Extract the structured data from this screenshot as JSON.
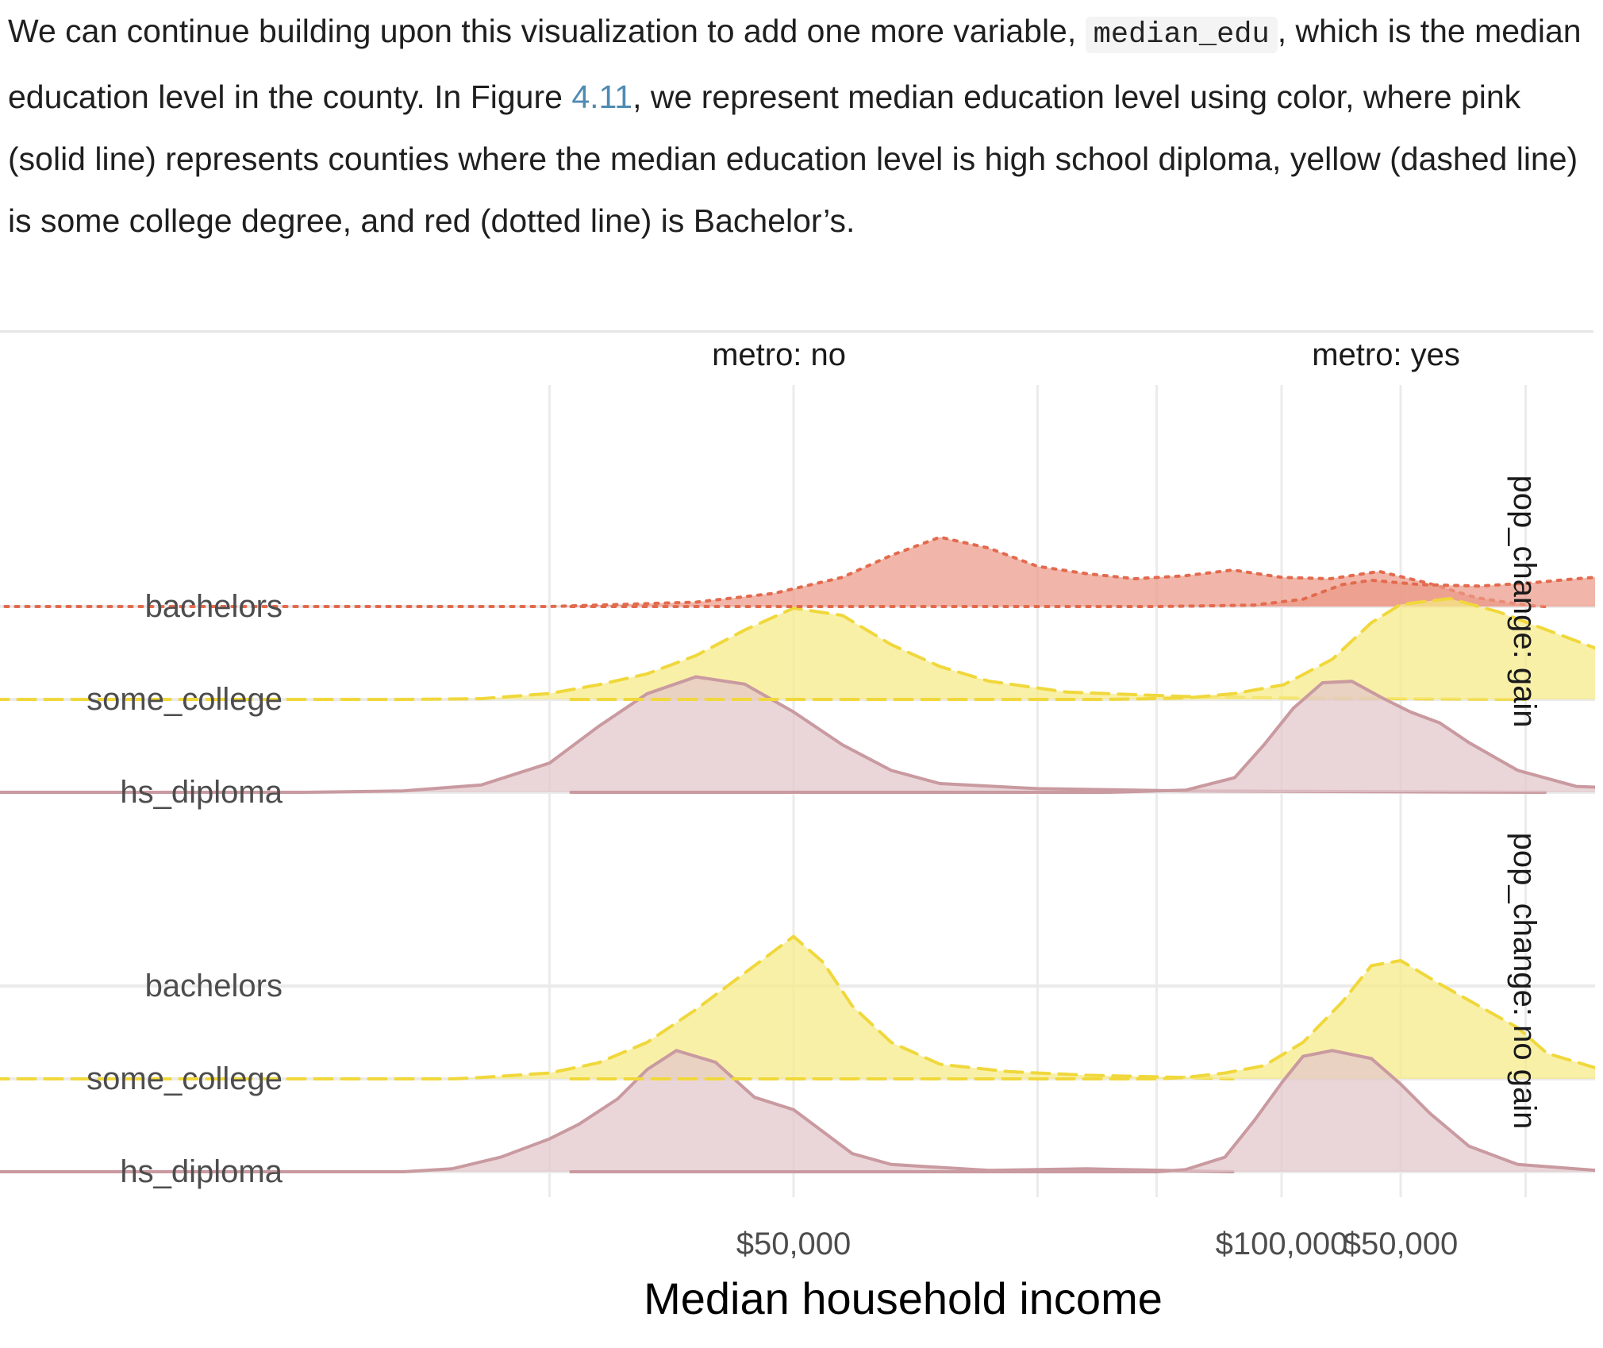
{
  "intro": {
    "part1": "We can continue building upon this visualization to add one more variable,",
    "code": "median_edu",
    "part2": ", which is the median education level in the county. In Figure",
    "fig_ref": "4.11",
    "part3": ", we represent median education level using color, where pink (solid line) represents counties where the median education level is high school diploma, yellow (dashed line) is some college degree, and red (dotted line) is Bachelor’s."
  },
  "chart_data": {
    "type": "ridgeline-density",
    "xlabel": "Median household income",
    "x_ticks": [
      50000,
      100000,
      150000
    ],
    "x_tick_labels": [
      "$50,000",
      "$100,000",
      "$150,000"
    ],
    "xlim": [
      0,
      152000
    ],
    "y_categories": [
      "hs_diploma",
      "some_college",
      "bachelors"
    ],
    "col_facets": [
      "metro: no",
      "metro: yes"
    ],
    "row_facets": [
      "pop_change: gain",
      "pop_change: no gain"
    ],
    "colors": {
      "hs_diploma": "#c99aa0",
      "some_college": "#f0d83c",
      "bachelors": "#e36a4e"
    },
    "fill_colors": {
      "hs_diploma": "#e2c6cb",
      "some_college": "#f7ea86",
      "bachelors": "#ec9a88"
    },
    "line_styles": {
      "hs_diploma": "solid",
      "some_college": "dashed",
      "bachelors": "dotted"
    },
    "panels": [
      {
        "col": 0,
        "row": 0,
        "series": [
          {
            "category": "bachelors",
            "points": [
              [
                -35000,
                0
              ],
              [
                25000,
                0
              ],
              [
                30000,
                0.02
              ],
              [
                40000,
                0.06
              ],
              [
                48000,
                0.18
              ],
              [
                55000,
                0.4
              ],
              [
                60000,
                0.7
              ],
              [
                65000,
                0.95
              ],
              [
                70000,
                0.8
              ],
              [
                75000,
                0.55
              ],
              [
                80000,
                0.45
              ],
              [
                85000,
                0.38
              ],
              [
                90000,
                0.42
              ],
              [
                95000,
                0.5
              ],
              [
                100000,
                0.4
              ],
              [
                105000,
                0.38
              ],
              [
                110000,
                0.48
              ],
              [
                115000,
                0.32
              ],
              [
                120000,
                0.12
              ],
              [
                125000,
                0.02
              ],
              [
                127000,
                0
              ]
            ]
          },
          {
            "category": "some_college",
            "points": [
              [
                -35000,
                0
              ],
              [
                10000,
                0
              ],
              [
                18000,
                0.01
              ],
              [
                25000,
                0.08
              ],
              [
                30000,
                0.2
              ],
              [
                35000,
                0.35
              ],
              [
                40000,
                0.6
              ],
              [
                45000,
                0.95
              ],
              [
                50000,
                1.25
              ],
              [
                55000,
                1.15
              ],
              [
                60000,
                0.75
              ],
              [
                65000,
                0.45
              ],
              [
                70000,
                0.25
              ],
              [
                78000,
                0.1
              ],
              [
                90000,
                0.04
              ],
              [
                100000,
                0.02
              ],
              [
                125000,
                0
              ]
            ]
          },
          {
            "category": "hs_diploma",
            "points": [
              [
                -35000,
                0
              ],
              [
                0,
                0
              ],
              [
                10000,
                0.02
              ],
              [
                18000,
                0.1
              ],
              [
                25000,
                0.4
              ],
              [
                30000,
                0.9
              ],
              [
                35000,
                1.35
              ],
              [
                40000,
                1.58
              ],
              [
                45000,
                1.48
              ],
              [
                50000,
                1.1
              ],
              [
                55000,
                0.65
              ],
              [
                60000,
                0.3
              ],
              [
                65000,
                0.12
              ],
              [
                75000,
                0.05
              ],
              [
                90000,
                0.02
              ],
              [
                127000,
                0
              ]
            ]
          }
        ]
      },
      {
        "col": 1,
        "row": 0,
        "series": [
          {
            "category": "bachelors",
            "points": [
              [
                -35000,
                0
              ],
              [
                25000,
                0
              ],
              [
                35000,
                0.02
              ],
              [
                40000,
                0.1
              ],
              [
                44000,
                0.3
              ],
              [
                47000,
                0.36
              ],
              [
                52000,
                0.3
              ],
              [
                58000,
                0.28
              ],
              [
                63000,
                0.32
              ],
              [
                68000,
                0.38
              ],
              [
                75000,
                0.45
              ],
              [
                82000,
                0.5
              ],
              [
                90000,
                0.6
              ],
              [
                95000,
                0.65
              ],
              [
                102000,
                0.64
              ],
              [
                108000,
                0.58
              ],
              [
                113000,
                0.42
              ],
              [
                117000,
                0.18
              ],
              [
                122000,
                0.1
              ],
              [
                128000,
                0.06
              ],
              [
                135000,
                0.03
              ],
              [
                138000,
                0.03
              ],
              [
                142000,
                0
              ]
            ]
          },
          {
            "category": "some_college",
            "points": [
              [
                -35000,
                0
              ],
              [
                20000,
                0
              ],
              [
                28000,
                0.02
              ],
              [
                33000,
                0.08
              ],
              [
                38000,
                0.2
              ],
              [
                43000,
                0.55
              ],
              [
                47000,
                1.05
              ],
              [
                50000,
                1.3
              ],
              [
                55000,
                1.38
              ],
              [
                60000,
                1.2
              ],
              [
                65000,
                0.95
              ],
              [
                70000,
                0.7
              ],
              [
                77000,
                0.52
              ],
              [
                85000,
                0.3
              ],
              [
                95000,
                0.12
              ],
              [
                110000,
                0.03
              ],
              [
                125000,
                0.01
              ],
              [
                142000,
                0
              ]
            ]
          },
          {
            "category": "hs_diploma",
            "points": [
              [
                -35000,
                0
              ],
              [
                20000,
                0
              ],
              [
                28000,
                0.03
              ],
              [
                33000,
                0.2
              ],
              [
                36000,
                0.65
              ],
              [
                39000,
                1.15
              ],
              [
                42000,
                1.5
              ],
              [
                45000,
                1.52
              ],
              [
                48000,
                1.3
              ],
              [
                51000,
                1.1
              ],
              [
                54000,
                0.95
              ],
              [
                57000,
                0.68
              ],
              [
                62000,
                0.3
              ],
              [
                68000,
                0.08
              ],
              [
                80000,
                0.02
              ],
              [
                142000,
                0
              ]
            ]
          }
        ]
      },
      {
        "col": 0,
        "row": 1,
        "series": [
          {
            "category": "some_college",
            "points": [
              [
                -35000,
                0
              ],
              [
                15000,
                0
              ],
              [
                18000,
                0.02
              ],
              [
                25000,
                0.08
              ],
              [
                30000,
                0.22
              ],
              [
                35000,
                0.5
              ],
              [
                40000,
                0.95
              ],
              [
                45000,
                1.45
              ],
              [
                50000,
                1.95
              ],
              [
                53000,
                1.6
              ],
              [
                56000,
                1.0
              ],
              [
                60000,
                0.5
              ],
              [
                65000,
                0.2
              ],
              [
                72000,
                0.1
              ],
              [
                80000,
                0.05
              ],
              [
                90000,
                0.02
              ],
              [
                95000,
                0
              ]
            ]
          },
          {
            "category": "hs_diploma",
            "points": [
              [
                -35000,
                0
              ],
              [
                10000,
                0
              ],
              [
                15000,
                0.04
              ],
              [
                20000,
                0.2
              ],
              [
                25000,
                0.45
              ],
              [
                28000,
                0.65
              ],
              [
                32000,
                1.0
              ],
              [
                35000,
                1.4
              ],
              [
                38000,
                1.66
              ],
              [
                42000,
                1.5
              ],
              [
                46000,
                1.02
              ],
              [
                50000,
                0.85
              ],
              [
                53000,
                0.55
              ],
              [
                56000,
                0.25
              ],
              [
                60000,
                0.1
              ],
              [
                70000,
                0.02
              ],
              [
                80000,
                0.04
              ],
              [
                95000,
                0
              ]
            ]
          }
        ]
      },
      {
        "col": 1,
        "row": 1,
        "series": [
          {
            "category": "some_college",
            "points": [
              [
                -35000,
                0
              ],
              [
                25000,
                0
              ],
              [
                28000,
                0.02
              ],
              [
                32000,
                0.08
              ],
              [
                36000,
                0.18
              ],
              [
                40000,
                0.5
              ],
              [
                44000,
                1.05
              ],
              [
                47000,
                1.55
              ],
              [
                50000,
                1.62
              ],
              [
                54000,
                1.3
              ],
              [
                58000,
                1.0
              ],
              [
                62000,
                0.7
              ],
              [
                65000,
                0.35
              ],
              [
                70000,
                0.15
              ],
              [
                75000,
                0.18
              ],
              [
                80000,
                0.2
              ],
              [
                88000,
                0.08
              ],
              [
                100000,
                0.03
              ],
              [
                120000,
                0
              ]
            ]
          },
          {
            "category": "hs_diploma",
            "points": [
              [
                -35000,
                0
              ],
              [
                25000,
                0
              ],
              [
                28000,
                0.03
              ],
              [
                32000,
                0.2
              ],
              [
                35000,
                0.7
              ],
              [
                38000,
                1.25
              ],
              [
                40000,
                1.58
              ],
              [
                43000,
                1.66
              ],
              [
                47000,
                1.55
              ],
              [
                50000,
                1.2
              ],
              [
                53000,
                0.8
              ],
              [
                57000,
                0.35
              ],
              [
                62000,
                0.1
              ],
              [
                70000,
                0.02
              ],
              [
                120000,
                0
              ]
            ]
          }
        ]
      }
    ]
  }
}
